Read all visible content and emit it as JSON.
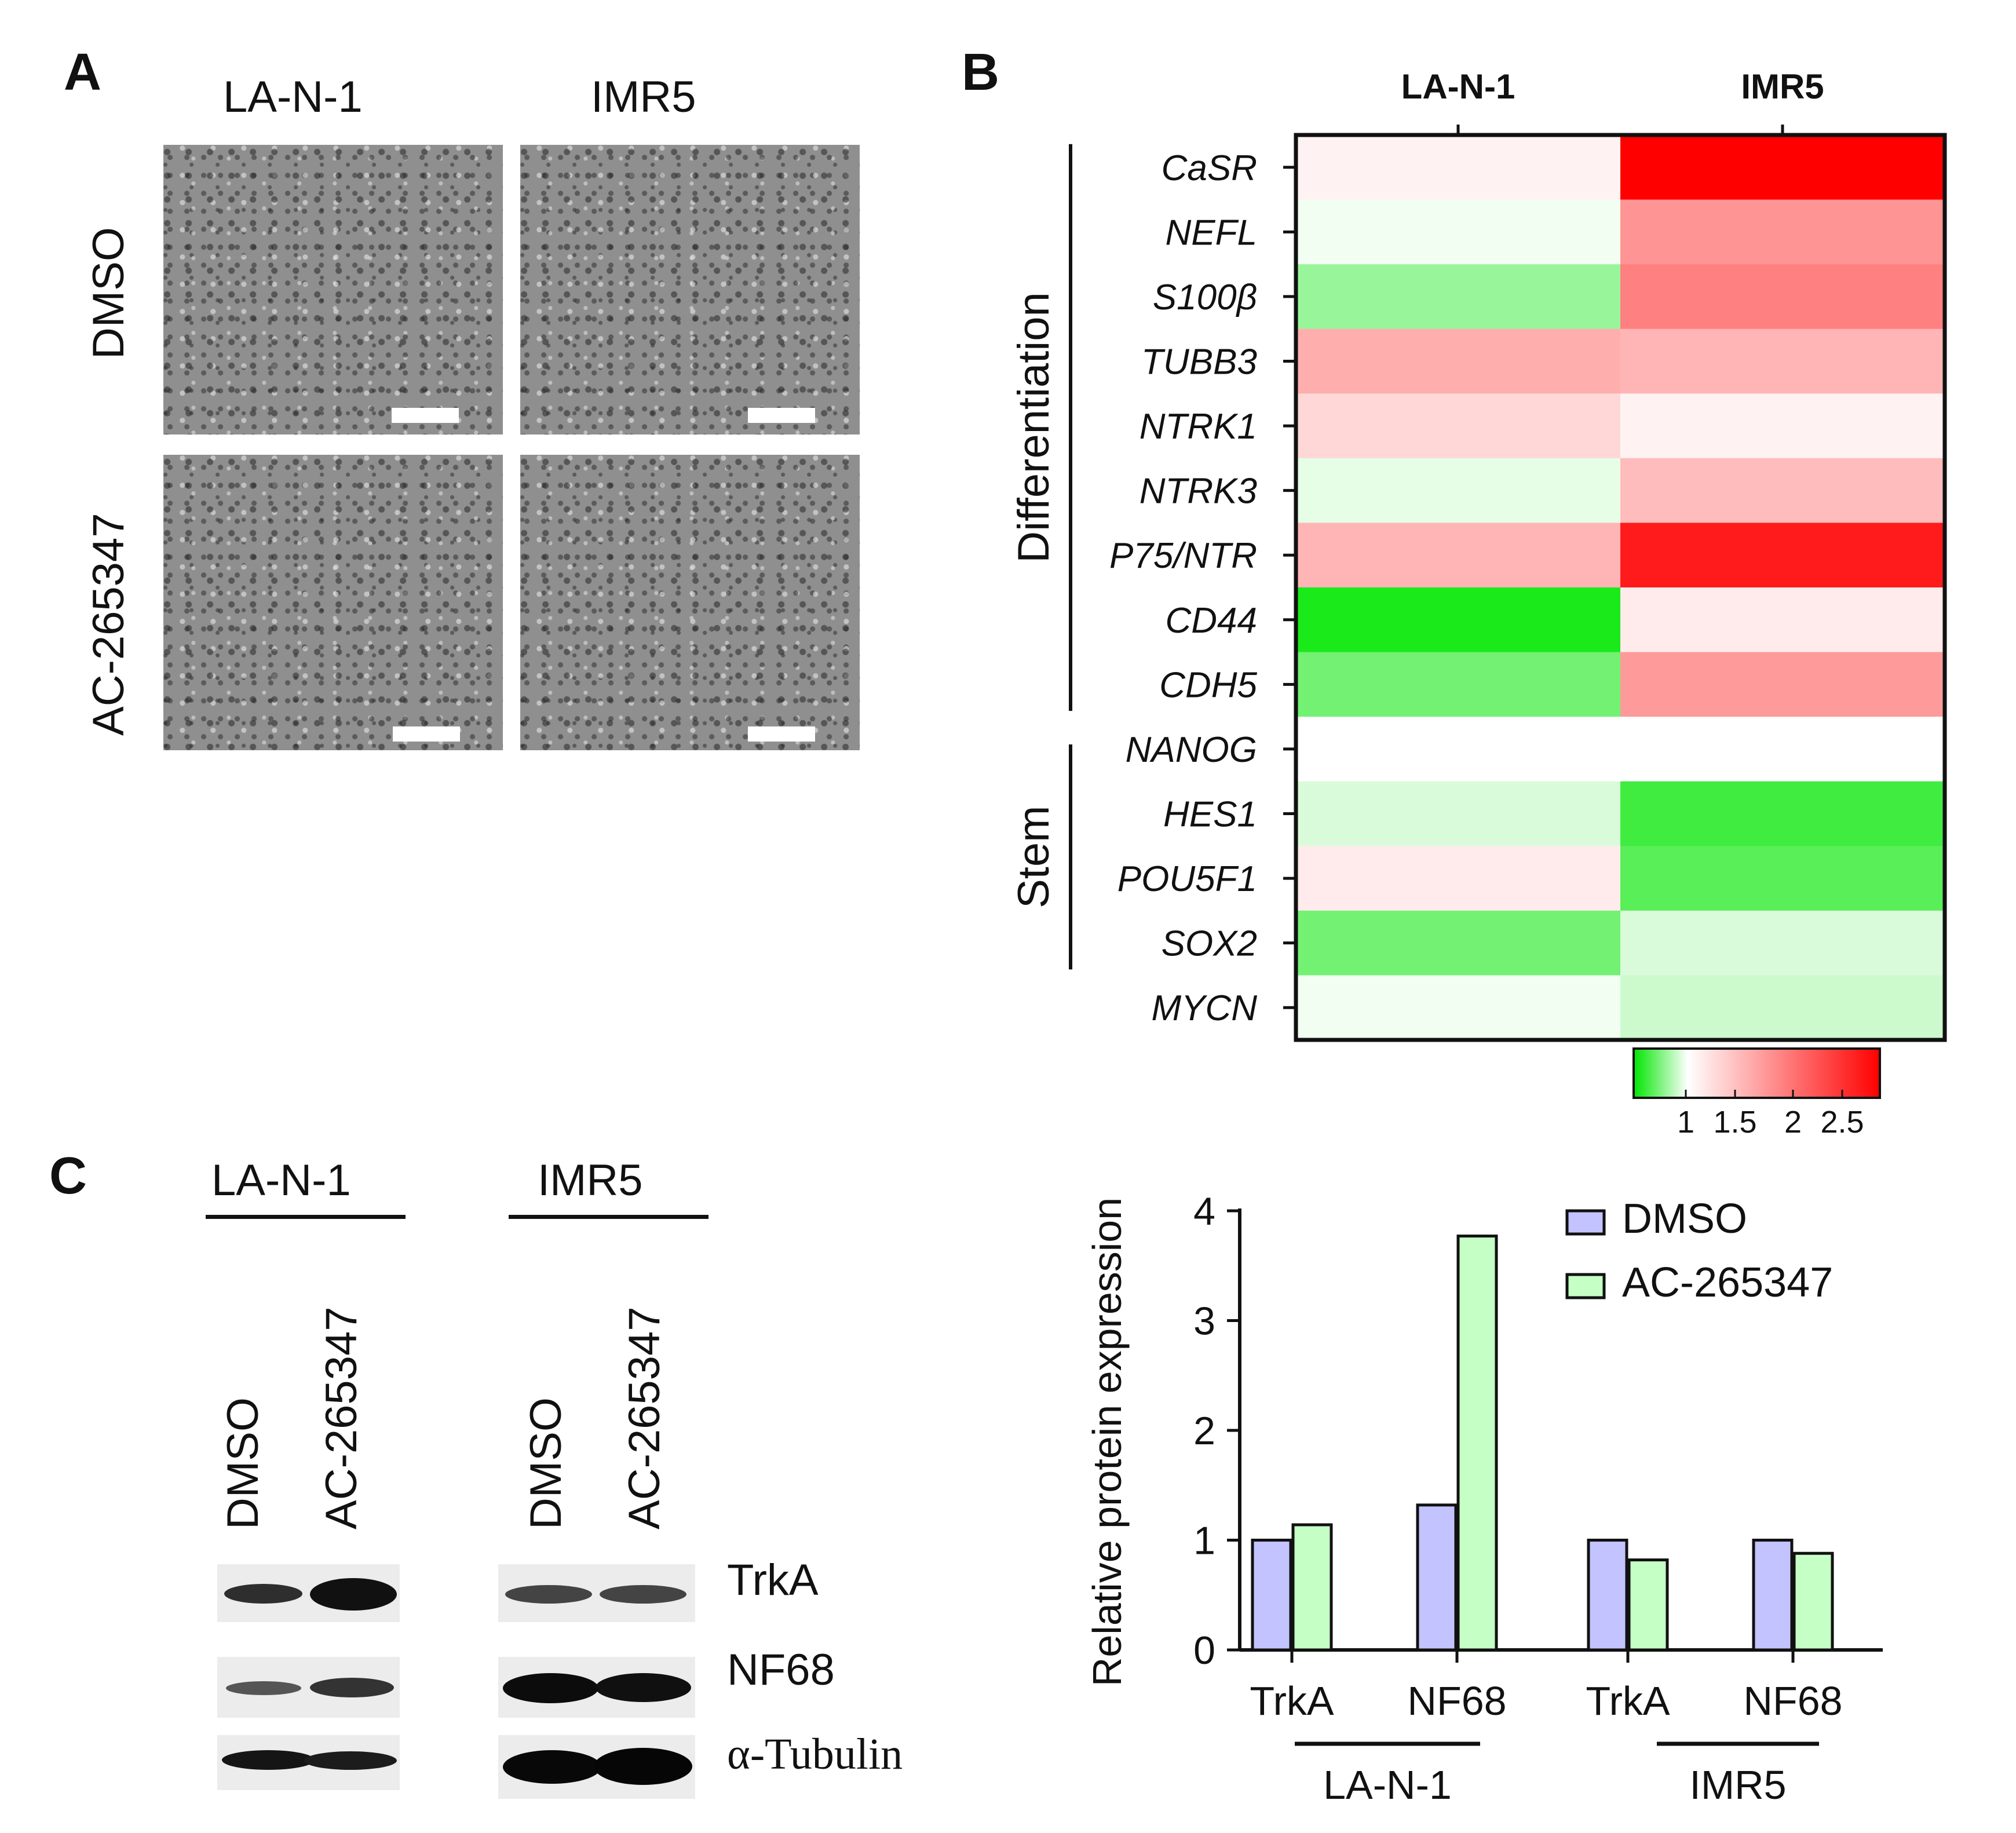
{
  "panelA": {
    "letter": "A",
    "col_labels": [
      "LA-N-1",
      "IMR5"
    ],
    "row_labels": [
      "DMSO",
      "AC-265347"
    ]
  },
  "panelB": {
    "letter": "B",
    "chart_data": {
      "type": "heatmap",
      "columns": [
        "LA-N-1",
        "IMR5"
      ],
      "rows": [
        "CaSR",
        "NEFL",
        "S100β",
        "TUBB3",
        "NTRK1",
        "NTRK3",
        "P75/NTR",
        "CD44",
        "CDH5",
        "NANOG",
        "HES1",
        "POU5F1",
        "SOX2",
        "MYCN"
      ],
      "values": [
        [
          1.1,
          2.9
        ],
        [
          0.95,
          1.8
        ],
        [
          0.6,
          1.95
        ],
        [
          1.6,
          1.55
        ],
        [
          1.3,
          1.1
        ],
        [
          0.9,
          1.5
        ],
        [
          1.55,
          2.7
        ],
        [
          0.1,
          1.15
        ],
        [
          0.45,
          1.75
        ],
        [
          1.0,
          1.0
        ],
        [
          0.85,
          0.25
        ],
        [
          1.15,
          0.35
        ],
        [
          0.45,
          0.85
        ],
        [
          0.95,
          0.8
        ]
      ],
      "groups": [
        {
          "label": "Differentiation"
        },
        {
          "label": "Stem"
        }
      ],
      "colorbar": {
        "ticks": [
          "1",
          "1.5",
          "2",
          "2.5"
        ],
        "low_color": "#00e600",
        "mid_color": "#ffffff",
        "high_color": "#ff0000"
      }
    }
  },
  "panelC": {
    "letter": "C",
    "blot": {
      "cell_lines": [
        "LA-N-1",
        "IMR5"
      ],
      "lanes": [
        "DMSO",
        "AC-265347"
      ],
      "proteins": [
        "TrkA",
        "NF68",
        "α-Tubulin"
      ]
    },
    "chart_data": {
      "type": "bar",
      "ylabel": "Relative protein expression",
      "ylim": [
        0,
        4
      ],
      "yticks": [
        "0",
        "1",
        "2",
        "3",
        "4"
      ],
      "categories": [
        "TrkA",
        "NF68",
        "TrkA",
        "NF68"
      ],
      "groups": [
        "LA-N-1",
        "IMR5"
      ],
      "series": [
        {
          "name": "DMSO",
          "color": "#c3c3ff",
          "values": [
            1.0,
            1.32,
            1.0,
            1.0
          ]
        },
        {
          "name": "AC-265347",
          "color": "#c6ffc6",
          "values": [
            1.14,
            3.77,
            0.82,
            0.88
          ]
        }
      ],
      "legend_position": "top-right"
    }
  }
}
